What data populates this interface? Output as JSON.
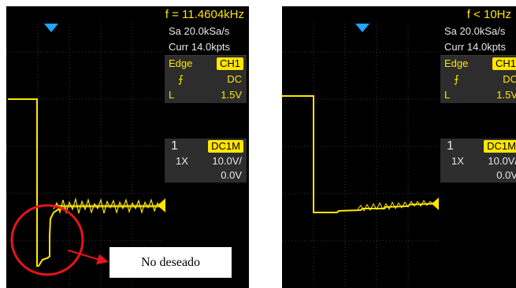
{
  "left": {
    "freq": "f = 11.4604kHz",
    "sample_rate": "Sa 20.0kSa/s",
    "memory": "Curr 14.0kpts",
    "trigger": {
      "type": "Edge",
      "source": "CH1",
      "coupling": "DC",
      "level_label": "L",
      "level": "1.5V"
    },
    "channel": {
      "num": "1",
      "coupling_badge": "DC1M",
      "probe": "1X",
      "vdiv": "10.0V/",
      "offset": "0.0V"
    }
  },
  "right": {
    "freq": "f < 10Hz",
    "sample_rate": "Sa 20.0kSa/s",
    "memory": "Curr 14.0kpts",
    "trigger": {
      "type": "Edge",
      "source": "CH1",
      "coupling": "DC",
      "level_label": "L",
      "level": "1.5V"
    },
    "channel": {
      "num": "1",
      "coupling_badge": "DC1M",
      "probe": "1X",
      "vdiv": "10.0V/",
      "offset": "0.0V"
    }
  },
  "callout": {
    "text": "No deseado"
  },
  "colors": {
    "trace": "#ffe600",
    "trigger_marker": "#1fa6ff",
    "highlight": "#e8141c",
    "background": "#000000"
  },
  "icons": {
    "edge": "rising-edge-icon",
    "trigger_pos": "trigger-position-marker",
    "level_arrow": "trigger-level-arrow"
  }
}
